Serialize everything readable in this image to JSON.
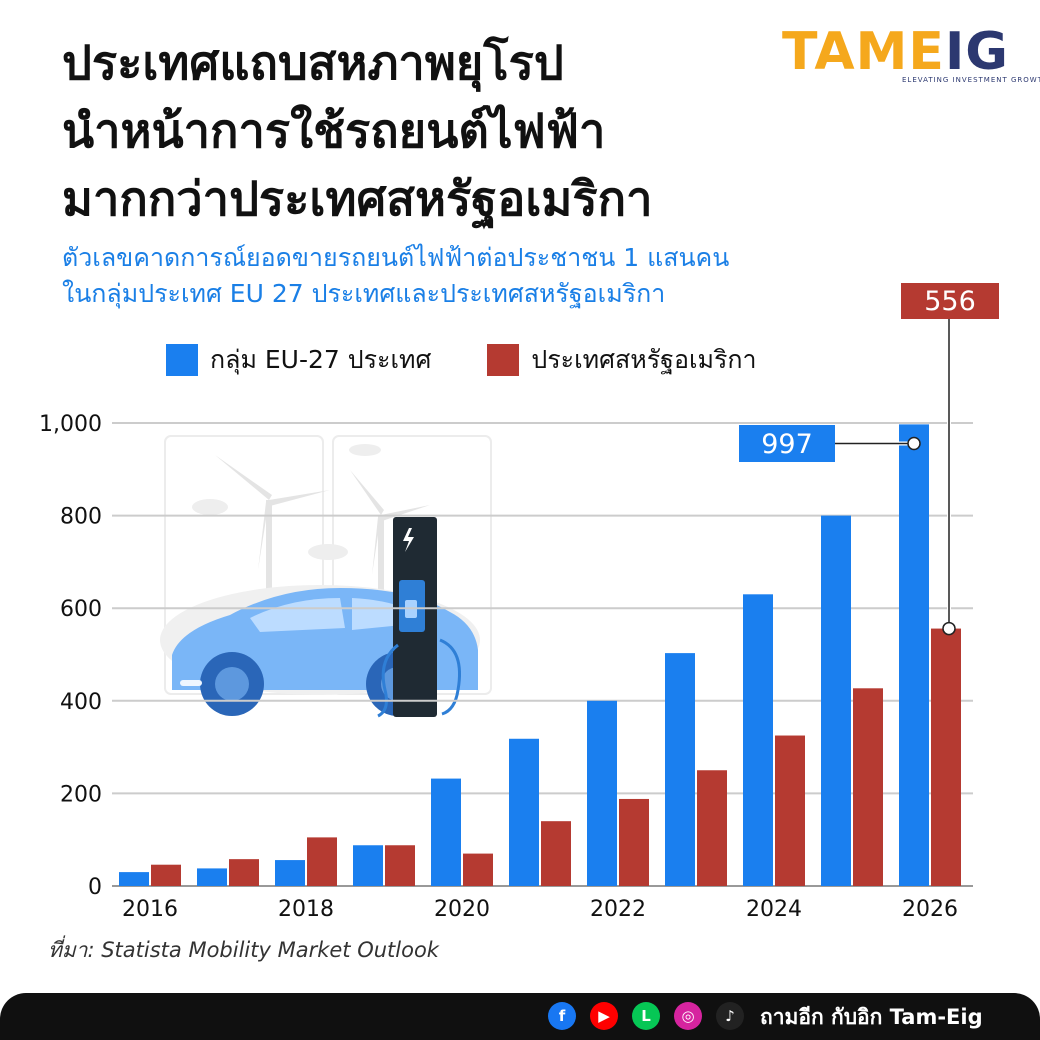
{
  "title_lines": [
    "ประเทศแถบสหภาพยุโรป",
    "นำหน้าการใช้รถยนต์ไฟฟ้า",
    "มากกว่าประเทศสหรัฐอเมริกา"
  ],
  "subtitle_lines": [
    "ตัวเลขคาดการณ์ยอดขายรถยนต์ไฟฟ้าต่อประชาชน 1 แสนคน",
    "ในกลุ่มประเทศ EU 27 ประเทศและประเทศสหรัฐอเมริกา"
  ],
  "brand": {
    "part1": "TAME",
    "part2": "IG",
    "tagline": "ELEVATING  INVESTMENT  GROWTH"
  },
  "source": "ที่มา: Statista Mobility Market Outlook",
  "footer": {
    "label": "ถามอีก กับอิก Tam-Eig",
    "icons": [
      {
        "name": "facebook-icon",
        "glyph": "f",
        "color": "#1877f2"
      },
      {
        "name": "youtube-icon",
        "glyph": "▶",
        "color": "#ff0000"
      },
      {
        "name": "line-icon",
        "glyph": "L",
        "color": "#06c755"
      },
      {
        "name": "instagram-icon",
        "glyph": "◎",
        "color": "#d6249f"
      },
      {
        "name": "tiktok-icon",
        "glyph": "♪",
        "color": "#222222"
      }
    ]
  },
  "colors": {
    "eu": "#1a7fef",
    "us": "#b53a31",
    "grid": "#cccccc"
  },
  "chart_data": {
    "type": "bar",
    "x": [
      2016,
      2017,
      2018,
      2019,
      2020,
      2021,
      2022,
      2023,
      2024,
      2025,
      2026
    ],
    "x_tick_labels": [
      "2016",
      "2018",
      "2020",
      "2022",
      "2024",
      "2026"
    ],
    "series": [
      {
        "name": "กลุ่ม EU-27 ประเทศ",
        "values": [
          30,
          38,
          56,
          88,
          232,
          318,
          400,
          503,
          630,
          800,
          997
        ]
      },
      {
        "name": "ประเทศสหรัฐอเมริกา",
        "values": [
          46,
          58,
          105,
          88,
          70,
          140,
          188,
          250,
          325,
          427,
          556
        ]
      }
    ],
    "ylim": [
      0,
      1000
    ],
    "y_ticks": [
      0,
      200,
      400,
      600,
      800,
      1000
    ],
    "y_tick_labels": [
      "0",
      "200",
      "400",
      "600",
      "800",
      "1,000"
    ],
    "grid": true,
    "legend": "top",
    "callouts": [
      {
        "series": 0,
        "index": 10,
        "label": "997"
      },
      {
        "series": 1,
        "index": 10,
        "label": "556"
      }
    ]
  }
}
